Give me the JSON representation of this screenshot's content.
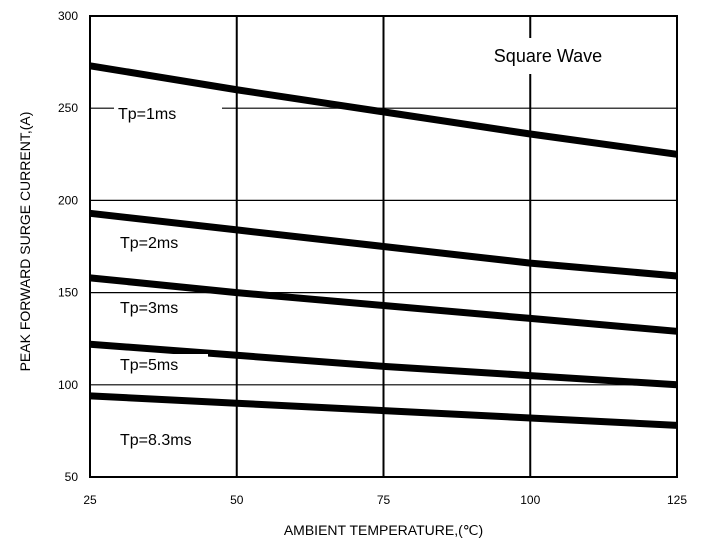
{
  "chart_data": {
    "type": "line",
    "title": "Square Wave",
    "xlabel": "AMBIENT TEMPERATURE,(℃)",
    "ylabel": "PEAK FORWARD SURGE CURRENT,(A)",
    "xlim": [
      25,
      125
    ],
    "ylim": [
      50,
      300
    ],
    "xticks": [
      25,
      50,
      75,
      100,
      125
    ],
    "yticks": [
      50,
      100,
      150,
      200,
      250,
      300
    ],
    "grid": true,
    "legend": "inline labels",
    "series": [
      {
        "name": "Tp=1ms",
        "x": [
          25,
          50,
          75,
          100,
          125
        ],
        "values": [
          273,
          260,
          248,
          236,
          225
        ]
      },
      {
        "name": "Tp=2ms",
        "x": [
          25,
          50,
          75,
          100,
          125
        ],
        "values": [
          193,
          184,
          175,
          166,
          159
        ]
      },
      {
        "name": "Tp=3ms",
        "x": [
          25,
          50,
          75,
          100,
          125
        ],
        "values": [
          158,
          150,
          143,
          136,
          129
        ]
      },
      {
        "name": "Tp=5ms",
        "x": [
          25,
          50,
          75,
          100,
          125
        ],
        "values": [
          122,
          116,
          110,
          105,
          100
        ]
      },
      {
        "name": "Tp=8.3ms",
        "x": [
          25,
          50,
          75,
          100,
          125
        ],
        "values": [
          94,
          90,
          86,
          82,
          78
        ]
      }
    ]
  }
}
